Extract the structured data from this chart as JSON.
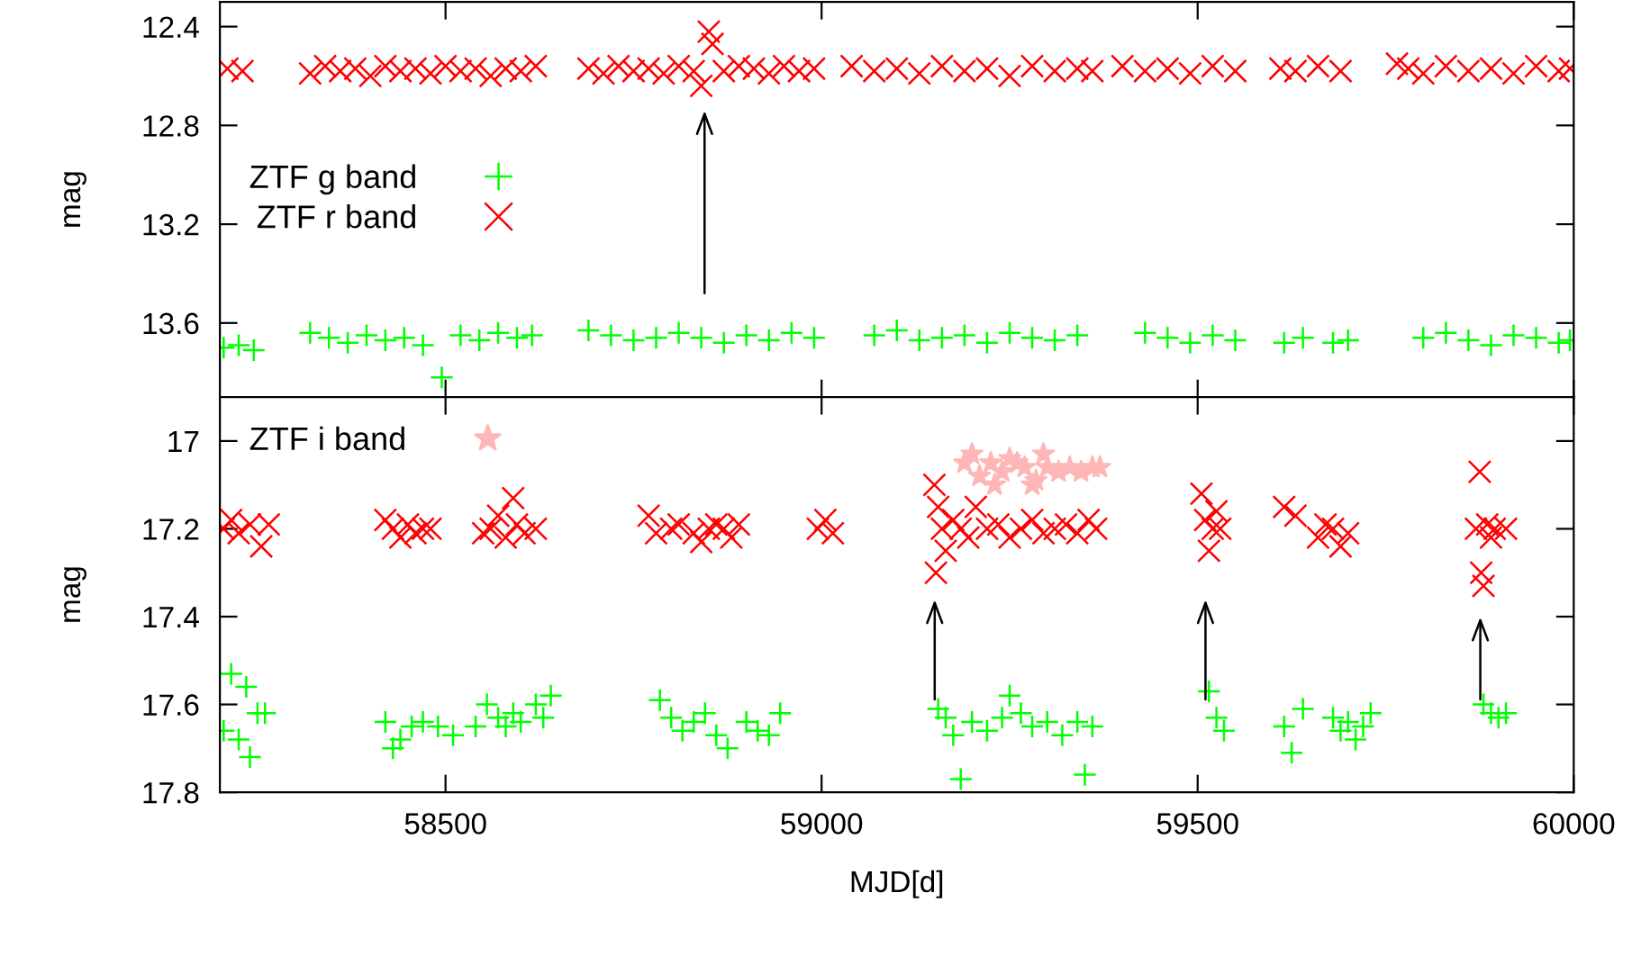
{
  "chart_data": [
    {
      "type": "scatter",
      "ylabel": "mag",
      "xlim": [
        58200,
        60000
      ],
      "xticks": [
        58500,
        59000,
        59500,
        60000
      ],
      "ylim": [
        13.9,
        12.3
      ],
      "yticks": [
        12.4,
        12.8,
        13.2,
        13.6
      ],
      "tick_labels": "y",
      "grid": false,
      "legend": "left",
      "series": [
        {
          "name": "ZTF g band",
          "color": "#00ff00",
          "marker": "plus",
          "x": [
            58205,
            58225,
            58245,
            58320,
            58345,
            58370,
            58395,
            58420,
            58445,
            58470,
            58495,
            58520,
            58545,
            58570,
            58595,
            58615,
            58690,
            58720,
            58750,
            58780,
            58810,
            58840,
            58870,
            58900,
            58930,
            58960,
            58990,
            59070,
            59100,
            59130,
            59160,
            59190,
            59220,
            59250,
            59280,
            59310,
            59340,
            59430,
            59460,
            59490,
            59520,
            59550,
            59615,
            59640,
            59680,
            59700,
            59800,
            59830,
            59860,
            59890,
            59920,
            59950,
            59980,
            59995
          ],
          "values": [
            13.7,
            13.69,
            13.71,
            13.64,
            13.66,
            13.68,
            13.65,
            13.67,
            13.66,
            13.69,
            13.82,
            13.65,
            13.67,
            13.64,
            13.66,
            13.65,
            13.63,
            13.65,
            13.67,
            13.66,
            13.64,
            13.66,
            13.68,
            13.65,
            13.67,
            13.64,
            13.66,
            13.65,
            13.63,
            13.67,
            13.66,
            13.65,
            13.68,
            13.64,
            13.66,
            13.67,
            13.65,
            13.64,
            13.66,
            13.68,
            13.65,
            13.67,
            13.68,
            13.66,
            13.68,
            13.67,
            13.66,
            13.64,
            13.67,
            13.69,
            13.65,
            13.66,
            13.68,
            13.67
          ]
        },
        {
          "name": "ZTF r band",
          "color": "#ff0000",
          "marker": "cross",
          "x": [
            58210,
            58230,
            58320,
            58340,
            58360,
            58380,
            58400,
            58420,
            58440,
            58460,
            58480,
            58500,
            58520,
            58540,
            58560,
            58580,
            58600,
            58620,
            58690,
            58710,
            58730,
            58750,
            58770,
            58790,
            58810,
            58830,
            58840,
            58850,
            58855,
            58870,
            58890,
            58910,
            58930,
            58950,
            58970,
            58990,
            59040,
            59070,
            59100,
            59130,
            59160,
            59190,
            59220,
            59250,
            59280,
            59310,
            59340,
            59360,
            59400,
            59430,
            59460,
            59490,
            59520,
            59550,
            59610,
            59630,
            59660,
            59690,
            59765,
            59780,
            59800,
            59830,
            59860,
            59890,
            59920,
            59950,
            59980,
            59995
          ],
          "values": [
            12.57,
            12.58,
            12.59,
            12.56,
            12.58,
            12.57,
            12.6,
            12.56,
            12.58,
            12.57,
            12.59,
            12.56,
            12.58,
            12.57,
            12.6,
            12.57,
            12.58,
            12.56,
            12.57,
            12.59,
            12.56,
            12.58,
            12.57,
            12.59,
            12.56,
            12.58,
            12.64,
            12.42,
            12.47,
            12.58,
            12.56,
            12.57,
            12.59,
            12.56,
            12.58,
            12.57,
            12.56,
            12.58,
            12.57,
            12.59,
            12.56,
            12.58,
            12.57,
            12.6,
            12.56,
            12.58,
            12.57,
            12.58,
            12.56,
            12.58,
            12.57,
            12.59,
            12.56,
            12.58,
            12.57,
            12.58,
            12.56,
            12.58,
            12.55,
            12.57,
            12.59,
            12.56,
            12.58,
            12.57,
            12.59,
            12.56,
            12.58,
            12.57
          ]
        }
      ]
    },
    {
      "type": "scatter",
      "xlabel": "MJD[d]",
      "ylabel": "mag",
      "xlim": [
        58200,
        60000
      ],
      "xticks": [
        58500,
        59000,
        59500,
        60000
      ],
      "ylim": [
        17.8,
        16.9
      ],
      "yticks": [
        17,
        17.2,
        17.4,
        17.6,
        17.8
      ],
      "grid": false,
      "legend": "top left",
      "series": [
        {
          "color": "#ff0000",
          "marker": "cross",
          "x": [
            58205,
            58215,
            58225,
            58240,
            58255,
            58265,
            58420,
            58430,
            58440,
            58450,
            58460,
            58470,
            58480,
            58550,
            58560,
            58570,
            58580,
            58590,
            58595,
            58605,
            58620,
            58770,
            58780,
            58800,
            58810,
            58830,
            58840,
            58850,
            58860,
            58870,
            58880,
            58890,
            58995,
            59005,
            59015,
            59150,
            59152,
            59155,
            59160,
            59165,
            59175,
            59185,
            59195,
            59205,
            59220,
            59235,
            59250,
            59265,
            59280,
            59295,
            59310,
            59325,
            59340,
            59355,
            59365,
            59505,
            59510,
            59515,
            59520,
            59525,
            59530,
            59615,
            59630,
            59660,
            59670,
            59680,
            59690,
            59700,
            59870,
            59875,
            59877,
            59880,
            59885,
            59890,
            59895,
            59910
          ],
          "values": [
            17.2,
            17.18,
            17.21,
            17.19,
            17.24,
            17.19,
            17.18,
            17.2,
            17.22,
            17.19,
            17.21,
            17.2,
            17.2,
            17.21,
            17.2,
            17.17,
            17.22,
            17.13,
            17.19,
            17.21,
            17.2,
            17.17,
            17.21,
            17.2,
            17.19,
            17.21,
            17.23,
            17.2,
            17.19,
            17.2,
            17.22,
            17.19,
            17.2,
            17.18,
            17.21,
            17.1,
            17.3,
            17.15,
            17.2,
            17.25,
            17.18,
            17.2,
            17.22,
            17.15,
            17.2,
            17.19,
            17.22,
            17.2,
            17.18,
            17.21,
            17.2,
            17.19,
            17.21,
            17.18,
            17.2,
            17.12,
            17.18,
            17.25,
            17.2,
            17.16,
            17.2,
            17.15,
            17.17,
            17.22,
            17.19,
            17.2,
            17.24,
            17.21,
            17.2,
            17.07,
            17.3,
            17.33,
            17.19,
            17.22,
            17.2,
            17.2
          ]
        },
        {
          "color": "#00ff00",
          "marker": "plus",
          "x": [
            58205,
            58215,
            58225,
            58235,
            58240,
            58250,
            58260,
            58420,
            58430,
            58440,
            58455,
            58470,
            58490,
            58510,
            58540,
            58555,
            58570,
            58580,
            58590,
            58600,
            58620,
            58630,
            58640,
            58785,
            58800,
            58815,
            58830,
            58845,
            58860,
            58875,
            58900,
            58915,
            58930,
            58945,
            59155,
            59165,
            59175,
            59185,
            59200,
            59220,
            59240,
            59250,
            59265,
            59280,
            59300,
            59320,
            59340,
            59350,
            59360,
            59515,
            59525,
            59535,
            59615,
            59625,
            59640,
            59680,
            59690,
            59700,
            59710,
            59720,
            59730,
            59880,
            59890,
            59900,
            59910
          ],
          "values": [
            17.66,
            17.53,
            17.68,
            17.56,
            17.72,
            17.62,
            17.62,
            17.64,
            17.7,
            17.68,
            17.65,
            17.64,
            17.65,
            17.67,
            17.65,
            17.6,
            17.63,
            17.65,
            17.62,
            17.64,
            17.6,
            17.63,
            17.58,
            17.59,
            17.63,
            17.66,
            17.64,
            17.62,
            17.67,
            17.7,
            17.64,
            17.66,
            17.67,
            17.62,
            17.61,
            17.63,
            17.67,
            17.77,
            17.64,
            17.66,
            17.63,
            17.58,
            17.62,
            17.65,
            17.64,
            17.67,
            17.64,
            17.76,
            17.65,
            17.57,
            17.63,
            17.66,
            17.65,
            17.71,
            17.61,
            17.63,
            17.66,
            17.64,
            17.68,
            17.65,
            17.62,
            17.6,
            17.62,
            17.63,
            17.62
          ]
        },
        {
          "name": "ZTF i band",
          "color": "#ffb6b6",
          "marker": "star",
          "x": [
            59190,
            59200,
            59210,
            59225,
            59230,
            59240,
            59250,
            59260,
            59270,
            59280,
            59285,
            59295,
            59300,
            59315,
            59330,
            59345,
            59360,
            59370
          ],
          "values": [
            17.05,
            17.03,
            17.08,
            17.05,
            17.1,
            17.07,
            17.04,
            17.05,
            17.06,
            17.1,
            17.09,
            17.03,
            17.06,
            17.07,
            17.06,
            17.07,
            17.06,
            17.06
          ]
        }
      ]
    }
  ]
}
